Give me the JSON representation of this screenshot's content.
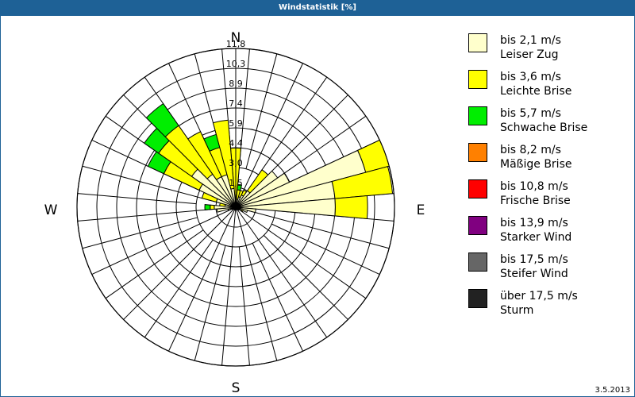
{
  "window": {
    "title": "Windstatistik [%]",
    "date": "3.5.2013"
  },
  "compass": {
    "N": "N",
    "E": "E",
    "S": "S",
    "W": "W"
  },
  "legend": [
    {
      "range": "bis 2,1 m/s",
      "name": "Leiser Zug",
      "color": "#ffffcc"
    },
    {
      "range": "bis 3,6 m/s",
      "name": "Leichte Brise",
      "color": "#ffff00"
    },
    {
      "range": "bis 5,7 m/s",
      "name": "Schwache Brise",
      "color": "#00ee00"
    },
    {
      "range": "bis 8,2 m/s",
      "name": "Mäßige Brise",
      "color": "#ff8000"
    },
    {
      "range": "bis 10,8 m/s",
      "name": "Frische Brise",
      "color": "#ff0000"
    },
    {
      "range": "bis 13,9 m/s",
      "name": "Starker Wind",
      "color": "#800080"
    },
    {
      "range": "bis 17,5 m/s",
      "name": "Steifer Wind",
      "color": "#666666"
    },
    {
      "range": "über 17,5 m/s",
      "name": "Sturm",
      "color": "#222222"
    }
  ],
  "chart_data": {
    "type": "polar-bar (wind rose)",
    "title": "Windstatistik [%]",
    "date": "3.5.2013",
    "ring_labels": [
      "1,5",
      "3,0",
      "4,4",
      "5,9",
      "7,4",
      "8,9",
      "10,3",
      "11,8"
    ],
    "rmax": 11.8,
    "sector_width_deg": 10,
    "series_names": [
      "Leiser Zug",
      "Leichte Brise",
      "Schwache Brise",
      "Mäßige Brise",
      "Frische Brise",
      "Starker Wind",
      "Steifer Wind",
      "Sturm"
    ],
    "sectors": [
      {
        "dir": 0,
        "cumulative": [
          0.6,
          4.4,
          4.4
        ]
      },
      {
        "dir": 10,
        "cumulative": [
          0.6,
          1.3,
          1.7
        ]
      },
      {
        "dir": 20,
        "cumulative": [
          0.8,
          1.3,
          1.3
        ]
      },
      {
        "dir": 30,
        "cumulative": [
          1.0,
          1.4,
          1.4
        ]
      },
      {
        "dir": 40,
        "cumulative": [
          1.5,
          3.4,
          3.4
        ]
      },
      {
        "dir": 50,
        "cumulative": [
          3.8,
          3.8,
          3.8
        ]
      },
      {
        "dir": 60,
        "cumulative": [
          4.4,
          4.4,
          4.4
        ]
      },
      {
        "dir": 70,
        "cumulative": [
          10.0,
          11.8,
          11.8
        ]
      },
      {
        "dir": 80,
        "cumulative": [
          7.4,
          11.7,
          11.7
        ]
      },
      {
        "dir": 90,
        "cumulative": [
          7.4,
          9.8,
          9.8
        ]
      },
      {
        "dir": 100,
        "cumulative": [
          1.5,
          1.5,
          1.5
        ]
      },
      {
        "dir": 110,
        "cumulative": [
          0.9,
          0.9,
          0.9
        ]
      },
      {
        "dir": 120,
        "cumulative": [
          0.5,
          0.6,
          0.6
        ]
      },
      {
        "dir": 130,
        "cumulative": [
          0.3,
          0.3,
          0.3
        ]
      },
      {
        "dir": 140,
        "cumulative": [
          0.2,
          0.2,
          0.2
        ]
      },
      {
        "dir": 150,
        "cumulative": [
          0.2,
          0.2,
          0.2
        ]
      },
      {
        "dir": 160,
        "cumulative": [
          0.1,
          0.1,
          0.1
        ]
      },
      {
        "dir": 170,
        "cumulative": [
          0.1,
          0.1,
          0.1
        ]
      },
      {
        "dir": 180,
        "cumulative": [
          0.1,
          0.1,
          0.1
        ]
      },
      {
        "dir": 190,
        "cumulative": [
          0.1,
          0.1,
          0.1
        ]
      },
      {
        "dir": 200,
        "cumulative": [
          0.1,
          0.1,
          0.1
        ]
      },
      {
        "dir": 210,
        "cumulative": [
          0.1,
          0.1,
          0.1
        ]
      },
      {
        "dir": 220,
        "cumulative": [
          0.2,
          0.2,
          0.2
        ]
      },
      {
        "dir": 230,
        "cumulative": [
          0.2,
          0.2,
          0.2
        ]
      },
      {
        "dir": 240,
        "cumulative": [
          0.3,
          0.3,
          0.3
        ]
      },
      {
        "dir": 250,
        "cumulative": [
          0.6,
          0.6,
          0.6
        ]
      },
      {
        "dir": 260,
        "cumulative": [
          1.4,
          1.4,
          1.4
        ]
      },
      {
        "dir": 270,
        "cumulative": [
          1.6,
          1.9,
          2.3
        ]
      },
      {
        "dir": 280,
        "cumulative": [
          0.8,
          1.2,
          1.2
        ]
      },
      {
        "dir": 290,
        "cumulative": [
          1.5,
          2.6,
          2.6
        ]
      },
      {
        "dir": 300,
        "cumulative": [
          3.0,
          5.9,
          7.2
        ]
      },
      {
        "dir": 310,
        "cumulative": [
          4.0,
          7.0,
          8.3
        ]
      },
      {
        "dir": 320,
        "cumulative": [
          3.0,
          7.4,
          9.4
        ]
      },
      {
        "dir": 330,
        "cumulative": [
          2.5,
          6.2,
          6.2
        ]
      },
      {
        "dir": 340,
        "cumulative": [
          2.5,
          4.6,
          5.6
        ]
      },
      {
        "dir": 350,
        "cumulative": [
          1.4,
          6.5,
          6.5
        ]
      }
    ]
  }
}
